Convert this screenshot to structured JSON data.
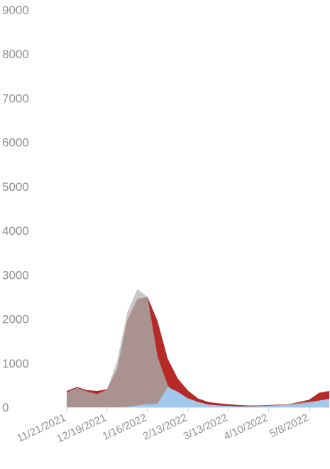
{
  "chart_data": {
    "type": "area",
    "x": [
      "11/21/2021",
      "11/28/2021",
      "12/5/2021",
      "12/12/2021",
      "12/19/2021",
      "12/26/2021",
      "1/2/2022",
      "1/9/2022",
      "1/16/2022",
      "1/23/2022",
      "1/30/2022",
      "2/6/2022",
      "2/13/2022",
      "2/20/2022",
      "2/27/2022",
      "3/6/2022",
      "3/13/2022",
      "3/20/2022",
      "3/27/2022",
      "4/3/2022",
      "4/10/2022",
      "4/17/2022",
      "4/24/2022",
      "5/1/2022",
      "5/8/2022",
      "5/15/2022",
      "5/22/2022"
    ],
    "x_tick_labels": [
      "11/21/2021",
      "12/19/2021",
      "1/16/2022",
      "2/13/2022",
      "3/13/2022",
      "4/10/2022",
      "5/8/2022"
    ],
    "y_ticks": [
      0,
      1000,
      2000,
      3000,
      4000,
      5000,
      6000,
      7000,
      8000,
      9000
    ],
    "ylim": [
      0,
      9000
    ],
    "grid": false,
    "series": [
      {
        "color": "#bdbdbd",
        "values": [
          340,
          440,
          360,
          300,
          400,
          1050,
          2150,
          2680,
          2500,
          1150,
          500,
          240,
          110,
          60,
          40,
          30,
          20,
          20,
          20,
          30,
          40,
          50,
          70,
          100,
          130,
          150,
          180
        ]
      },
      {
        "color": "#b52a26",
        "values": [
          370,
          460,
          390,
          370,
          410,
          860,
          1960,
          2450,
          2500,
          1950,
          1100,
          650,
          380,
          200,
          120,
          90,
          70,
          50,
          40,
          40,
          50,
          60,
          70,
          120,
          170,
          330,
          370
        ]
      },
      {
        "color": "#a3c8ee",
        "values": [
          0,
          0,
          0,
          0,
          0,
          0,
          10,
          40,
          70,
          80,
          460,
          350,
          200,
          120,
          60,
          40,
          30,
          20,
          20,
          20,
          30,
          40,
          50,
          70,
          100,
          150,
          190
        ]
      }
    ]
  }
}
